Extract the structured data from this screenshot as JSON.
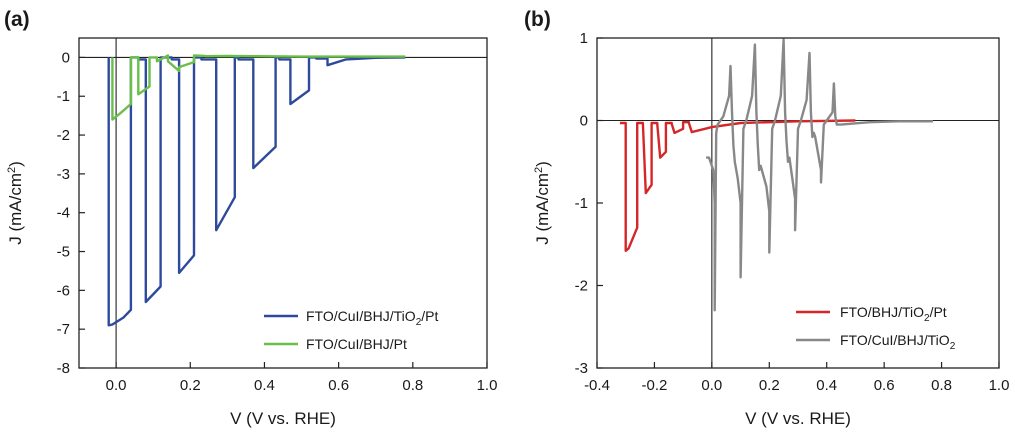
{
  "chart_data": [
    {
      "panel_label": "(a)",
      "type": "line",
      "xlabel": "V (V vs. RHE)",
      "ylabel": "J (mA/cm2)",
      "xlim": [
        -0.1,
        1.0
      ],
      "ylim": [
        -8,
        0.5
      ],
      "x_ticks": [
        "0.0",
        "0.2",
        "0.4",
        "0.6",
        "0.8",
        "1.0"
      ],
      "y_ticks": [
        "0",
        "-1",
        "-2",
        "-3",
        "-4",
        "-5",
        "-6",
        "-7",
        "-8"
      ],
      "legend_position": "bottom-right",
      "series": [
        {
          "name": "FTO/CuI/BHJ/TiO2/Pt",
          "color": "#2e4a9c",
          "x": [
            -0.02,
            -0.02,
            -0.01,
            0.02,
            0.04,
            0.04,
            0.06,
            0.06,
            0.08,
            0.08,
            0.12,
            0.12,
            0.15,
            0.15,
            0.17,
            0.17,
            0.21,
            0.21,
            0.23,
            0.23,
            0.27,
            0.27,
            0.32,
            0.32,
            0.33,
            0.33,
            0.37,
            0.37,
            0.43,
            0.43,
            0.44,
            0.44,
            0.47,
            0.47,
            0.52,
            0.52,
            0.54,
            0.54,
            0.57,
            0.57,
            0.62,
            0.7,
            0.78
          ],
          "y": [
            0.0,
            -6.9,
            -6.88,
            -6.7,
            -6.5,
            0.0,
            0.0,
            -0.05,
            -0.05,
            -6.3,
            -5.9,
            0.0,
            0.0,
            -0.05,
            -0.05,
            -5.55,
            -5.1,
            0.0,
            0.0,
            -0.05,
            -0.05,
            -4.45,
            -3.6,
            0.0,
            0.0,
            -0.05,
            -0.05,
            -2.85,
            -2.3,
            0.0,
            0.0,
            -0.05,
            -0.05,
            -1.2,
            -0.85,
            0.0,
            0.0,
            -0.03,
            -0.03,
            -0.2,
            -0.05,
            -0.01,
            0.0
          ]
        },
        {
          "name": "FTO/CuI/BHJ/Pt",
          "color": "#6abf4b",
          "x": [
            -0.01,
            -0.01,
            0.01,
            0.04,
            0.04,
            0.06,
            0.06,
            0.09,
            0.09,
            0.11,
            0.11,
            0.14,
            0.14,
            0.17,
            0.17,
            0.21,
            0.21,
            0.24,
            0.24,
            0.3,
            0.38,
            0.5,
            0.78
          ],
          "y": [
            0.0,
            -1.6,
            -1.45,
            -1.2,
            0.0,
            0.0,
            -0.95,
            -0.75,
            0.0,
            0.0,
            -0.1,
            0.05,
            -0.1,
            -0.35,
            -0.25,
            -0.12,
            0.05,
            0.04,
            0.03,
            0.04,
            0.03,
            0.02,
            0.02
          ]
        }
      ]
    },
    {
      "panel_label": "(b)",
      "type": "line",
      "xlabel": "V (V vs. RHE)",
      "ylabel": "J (mA/cm2)",
      "xlim": [
        -0.4,
        1.0
      ],
      "ylim": [
        -3,
        1
      ],
      "x_ticks": [
        "-0.4",
        "-0.2",
        "0.0",
        "0.2",
        "0.4",
        "0.6",
        "0.8",
        "1.0"
      ],
      "y_ticks": [
        "1",
        "0",
        "-1",
        "-2",
        "-3"
      ],
      "legend_position": "bottom-right",
      "series": [
        {
          "name": "FTO/BHJ/TiO2/Pt",
          "color": "#d62728",
          "x": [
            -0.32,
            -0.3,
            -0.3,
            -0.29,
            -0.26,
            -0.26,
            -0.24,
            -0.24,
            -0.23,
            -0.21,
            -0.21,
            -0.19,
            -0.19,
            -0.18,
            -0.16,
            -0.16,
            -0.14,
            -0.14,
            -0.13,
            -0.1,
            -0.1,
            -0.08,
            -0.08,
            -0.07,
            0.0,
            0.1,
            0.3,
            0.5
          ],
          "y": [
            -0.03,
            -0.03,
            -1.58,
            -1.55,
            -1.3,
            -0.03,
            -0.03,
            -0.04,
            -0.88,
            -0.78,
            -0.03,
            -0.03,
            -0.05,
            -0.45,
            -0.38,
            -0.03,
            -0.03,
            -0.04,
            -0.15,
            -0.1,
            -0.02,
            -0.02,
            -0.03,
            -0.14,
            -0.08,
            -0.03,
            -0.01,
            0.0
          ]
        },
        {
          "name": "FTO/CuI/BHJ/TiO2",
          "color": "#888888",
          "x": [
            -0.02,
            -0.01,
            0.005,
            0.01,
            0.01,
            0.015,
            0.02,
            0.04,
            0.06,
            0.065,
            0.07,
            0.075,
            0.08,
            0.09,
            0.1,
            0.1,
            0.11,
            0.12,
            0.14,
            0.15,
            0.155,
            0.16,
            0.165,
            0.17,
            0.19,
            0.2,
            0.2,
            0.21,
            0.22,
            0.24,
            0.25,
            0.255,
            0.26,
            0.265,
            0.27,
            0.28,
            0.29,
            0.29,
            0.3,
            0.31,
            0.33,
            0.34,
            0.345,
            0.35,
            0.355,
            0.36,
            0.37,
            0.38,
            0.38,
            0.39,
            0.4,
            0.42,
            0.425,
            0.43,
            0.435,
            0.44,
            0.45,
            0.48,
            0.55,
            0.65,
            0.77
          ],
          "y": [
            -0.45,
            -0.45,
            -0.6,
            -1.0,
            -2.3,
            -0.15,
            -0.05,
            0.05,
            0.3,
            0.66,
            0.1,
            -0.3,
            -0.5,
            -0.7,
            -1.0,
            -1.9,
            -0.1,
            0.0,
            0.3,
            0.92,
            0.1,
            -0.3,
            -0.6,
            -0.55,
            -0.8,
            -1.1,
            -1.6,
            -0.1,
            0.0,
            0.3,
            0.98,
            0.1,
            -0.25,
            -0.5,
            -0.45,
            -0.7,
            -0.95,
            -1.33,
            -0.1,
            0.0,
            0.25,
            0.82,
            0.1,
            -0.2,
            -0.15,
            -0.2,
            -0.4,
            -0.6,
            -0.75,
            -0.05,
            0.0,
            0.1,
            0.45,
            0.05,
            -0.05,
            -0.05,
            -0.05,
            -0.04,
            -0.02,
            -0.01,
            -0.01
          ]
        }
      ]
    }
  ]
}
